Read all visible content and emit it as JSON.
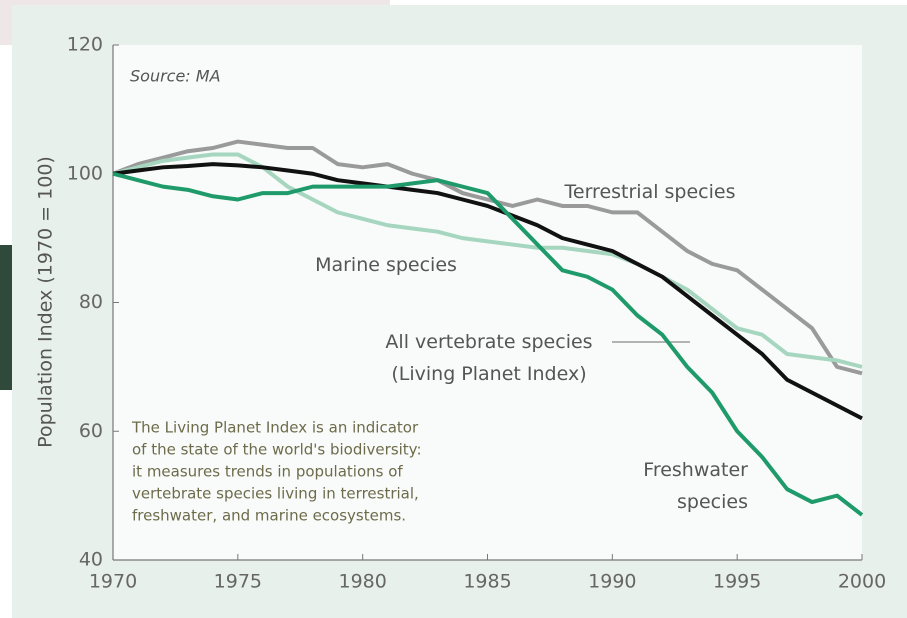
{
  "chart_data": {
    "type": "line",
    "source": "Source: MA",
    "y_label": "Population Index (1970 = 100)",
    "x": [
      1970,
      1971,
      1972,
      1973,
      1974,
      1975,
      1976,
      1977,
      1978,
      1979,
      1980,
      1981,
      1982,
      1983,
      1984,
      1985,
      1986,
      1987,
      1988,
      1989,
      1990,
      1991,
      1992,
      1993,
      1994,
      1995,
      1996,
      1997,
      1998,
      1999,
      2000
    ],
    "xlim": [
      1970,
      2000
    ],
    "xticks": [
      1970,
      1975,
      1980,
      1985,
      1990,
      1995,
      2000
    ],
    "ylim": [
      40,
      120
    ],
    "yticks": [
      40,
      60,
      80,
      100,
      120
    ],
    "series": [
      {
        "name": "Terrestrial species",
        "color": "#9a9a9a",
        "values": [
          100,
          101.5,
          102.5,
          103.5,
          104,
          105,
          104.5,
          104,
          104,
          101.5,
          101,
          101.5,
          100,
          99,
          97,
          96,
          95,
          96,
          95,
          95,
          94,
          94,
          91,
          88,
          86,
          85,
          82,
          79,
          76,
          70,
          69
        ]
      },
      {
        "name": "Marine species",
        "color": "#a6d6bf",
        "values": [
          100,
          101,
          102,
          102.5,
          103,
          103,
          101,
          98,
          96,
          94,
          93,
          92,
          91.5,
          91,
          90,
          89.5,
          89,
          88.5,
          88.5,
          88,
          87.5,
          86,
          84,
          82,
          79,
          76,
          75,
          72,
          71.5,
          71,
          70
        ]
      },
      {
        "name": "All vertebrate species\n(Living Planet Index)",
        "color": "#111111",
        "values": [
          100,
          100.5,
          101,
          101.2,
          101.5,
          101.3,
          101,
          100.5,
          100,
          99,
          98.5,
          98,
          97.5,
          97,
          96,
          95,
          93.5,
          92,
          90,
          89,
          88,
          86,
          84,
          81,
          78,
          75,
          72,
          68,
          66,
          64,
          62
        ]
      },
      {
        "name": "Freshwater\nspecies",
        "color": "#1f9a6a",
        "values": [
          100,
          99,
          98,
          97.5,
          96.5,
          96,
          97,
          97,
          98,
          98,
          98,
          98,
          98.5,
          99,
          98,
          97,
          93,
          89,
          85,
          84,
          82,
          78,
          75,
          70,
          66,
          60,
          56,
          51,
          49,
          50,
          47
        ]
      }
    ],
    "note": [
      "The Living Planet Index is an indicator",
      "of the state of the world's biodiversity:",
      "it measures trends in populations of",
      "vertebrate species living in terrestrial,",
      "freshwater, and marine ecosystems."
    ]
  }
}
